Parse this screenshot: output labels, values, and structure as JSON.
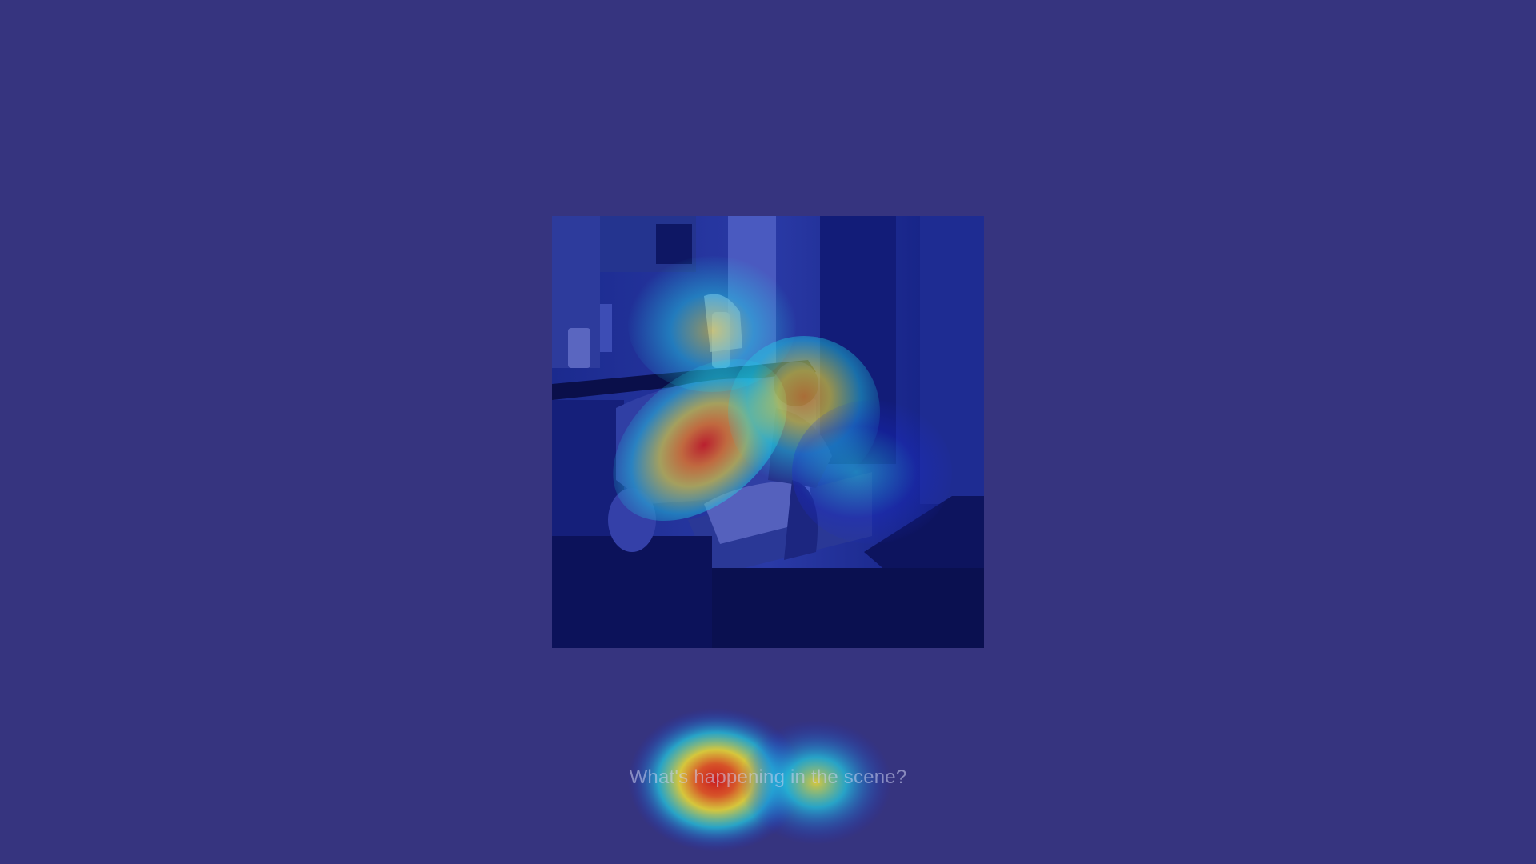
{
  "image": {
    "icon": "living-room-photo",
    "overlay": "attention-heatmap"
  },
  "question": {
    "text": "What's happening in the scene?"
  },
  "colors": {
    "background": "#36347f",
    "heat_low": "#1a2bd6",
    "heat_mid": "#21d3e6",
    "heat_high": "#f2e030",
    "heat_peak": "#d21a1a"
  }
}
